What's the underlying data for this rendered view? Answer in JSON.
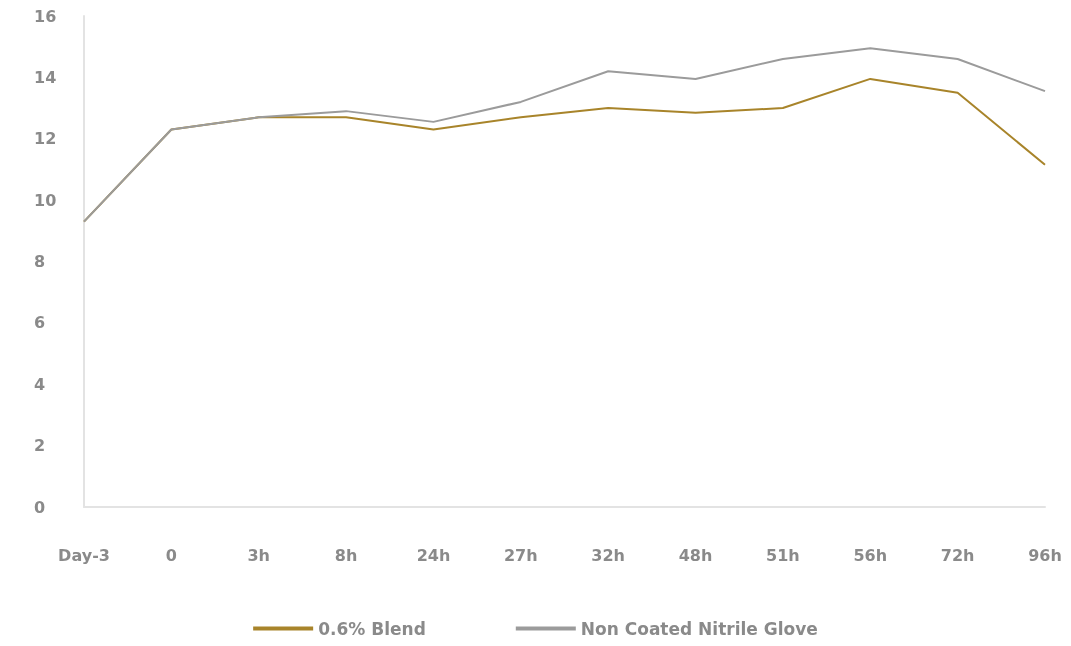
{
  "chart_data": {
    "type": "line",
    "categories": [
      "Day-3",
      "0",
      "3h",
      "8h",
      "24h",
      "27h",
      "32h",
      "48h",
      "51h",
      "56h",
      "72h",
      "96h"
    ],
    "series": [
      {
        "name": "0.6% Blend",
        "color": "#a8842a",
        "values": [
          9.3,
          12.3,
          12.7,
          12.7,
          12.3,
          12.7,
          13.0,
          12.85,
          13.0,
          13.95,
          13.5,
          11.15
        ]
      },
      {
        "name": "Non Coated Nitrile Glove",
        "color": "#9b9b9b",
        "values": [
          9.3,
          12.3,
          12.7,
          12.9,
          12.55,
          13.2,
          14.2,
          13.95,
          14.6,
          14.95,
          14.6,
          13.55
        ]
      }
    ],
    "ylim": [
      0,
      16
    ],
    "yticks": [
      0,
      2,
      4,
      6,
      8,
      10,
      12,
      14,
      16
    ],
    "grid": false,
    "legend": "bottom",
    "marker": "none",
    "line_style": "solid"
  }
}
